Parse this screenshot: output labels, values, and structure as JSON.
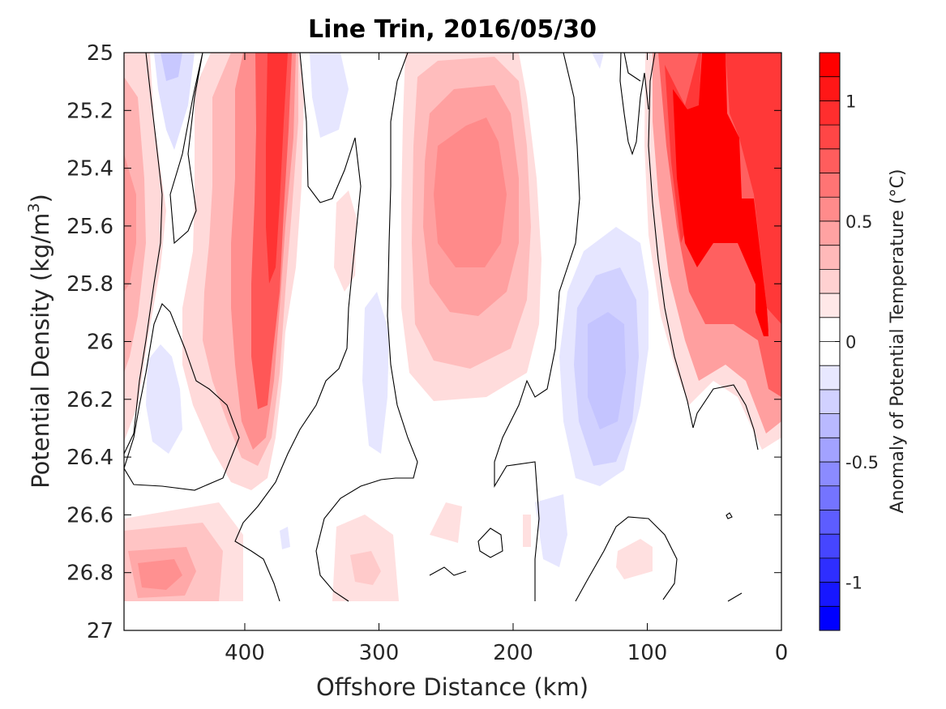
{
  "chart_data": {
    "type": "heatmap",
    "subtype": "filled-contour",
    "title": "Line Trin, 2016/05/30",
    "xlabel": "Offshore Distance (km)",
    "ylabel_main": "Potential Density (kg/m",
    "ylabel_sup": "3",
    "ylabel_tail": ")",
    "xlim": [
      490,
      0
    ],
    "x_reversed": true,
    "ylim": [
      25,
      27
    ],
    "y_reversed": true,
    "xticks": [
      400,
      300,
      200,
      100,
      0
    ],
    "yticks": [
      25,
      25.2,
      25.4,
      25.6,
      25.8,
      26,
      26.2,
      26.4,
      26.6,
      26.8,
      27
    ],
    "ytick_labels": [
      "25",
      "25.2",
      "25.4",
      "25.6",
      "25.8",
      "26",
      "26.2",
      "26.4",
      "26.6",
      "26.8",
      "27"
    ],
    "colorbar": {
      "label": "Anomaly of Potential Temperature (°C)",
      "range": [
        -1.2,
        1.2
      ],
      "step": 0.1,
      "ticks": [
        1,
        0.5,
        0,
        -0.5,
        -1
      ],
      "tick_labels": [
        "1",
        "0.5",
        "0",
        "-0.5",
        "-1"
      ],
      "neg_color": "#0000ff",
      "pos_color": "#ff0000",
      "zero_color": "#ffffff"
    },
    "anomaly_features": [
      {
        "x": 478,
        "y": 25.65,
        "value": 0.3
      },
      {
        "x": 458,
        "y": 25.05,
        "value": -0.15
      },
      {
        "x": 450,
        "y": 26.15,
        "value": -0.1
      },
      {
        "x": 425,
        "y": 25.9,
        "value": 0.25
      },
      {
        "x": 382,
        "y": 25.05,
        "value": 0.9
      },
      {
        "x": 380,
        "y": 25.55,
        "value": 0.85
      },
      {
        "x": 378,
        "y": 26.1,
        "value": 0.75
      },
      {
        "x": 345,
        "y": 25.1,
        "value": -0.1
      },
      {
        "x": 302,
        "y": 26.3,
        "value": -0.1
      },
      {
        "x": 235,
        "y": 25.5,
        "value": 0.5
      },
      {
        "x": 225,
        "y": 25.3,
        "value": 0.45
      },
      {
        "x": 130,
        "y": 26.1,
        "value": -0.2
      },
      {
        "x": 125,
        "y": 26.35,
        "value": -0.15
      },
      {
        "x": 75,
        "y": 25.3,
        "value": 1.2
      },
      {
        "x": 55,
        "y": 25.05,
        "value": 1.05
      },
      {
        "x": 45,
        "y": 25.6,
        "value": 1.0
      },
      {
        "x": 20,
        "y": 26.0,
        "value": 1.2
      },
      {
        "x": 465,
        "y": 26.8,
        "value": 0.35
      },
      {
        "x": 300,
        "y": 26.82,
        "value": 0.2
      },
      {
        "x": 210,
        "y": 26.75,
        "value": 0.15
      },
      {
        "x": 85,
        "y": 26.75,
        "value": 0.1
      }
    ]
  }
}
